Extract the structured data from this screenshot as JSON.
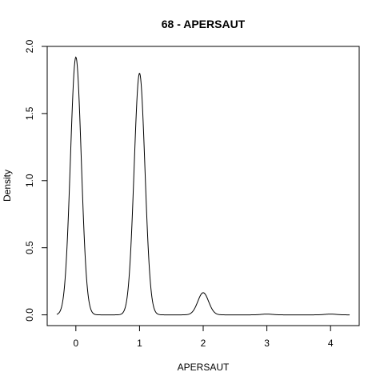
{
  "chart_data": {
    "type": "line",
    "title": "68 - APERSAUT",
    "xlabel": "APERSAUT",
    "ylabel": "Density",
    "xlim": [
      -0.45,
      4.45
    ],
    "ylim": [
      -0.08,
      2.0
    ],
    "x_ticks": [
      0,
      1,
      2,
      3,
      4
    ],
    "x_tick_labels": [
      "0",
      "1",
      "2",
      "3",
      "4"
    ],
    "y_ticks": [
      0.0,
      0.5,
      1.0,
      1.5,
      2.0
    ],
    "y_tick_labels": [
      "0.0",
      "0.5",
      "1.0",
      "1.5",
      "2.0"
    ],
    "grid": false,
    "line_color": "#000000",
    "density_curve": {
      "x_range": [
        -0.3,
        4.3
      ],
      "components": [
        {
          "center": 0.0,
          "peak": 1.92,
          "sd": 0.085
        },
        {
          "center": 1.0,
          "peak": 1.8,
          "sd": 0.085
        },
        {
          "center": 2.0,
          "peak": 0.165,
          "sd": 0.085
        },
        {
          "center": 3.0,
          "peak": 0.006,
          "sd": 0.085
        },
        {
          "center": 4.0,
          "peak": 0.006,
          "sd": 0.085
        }
      ]
    }
  }
}
